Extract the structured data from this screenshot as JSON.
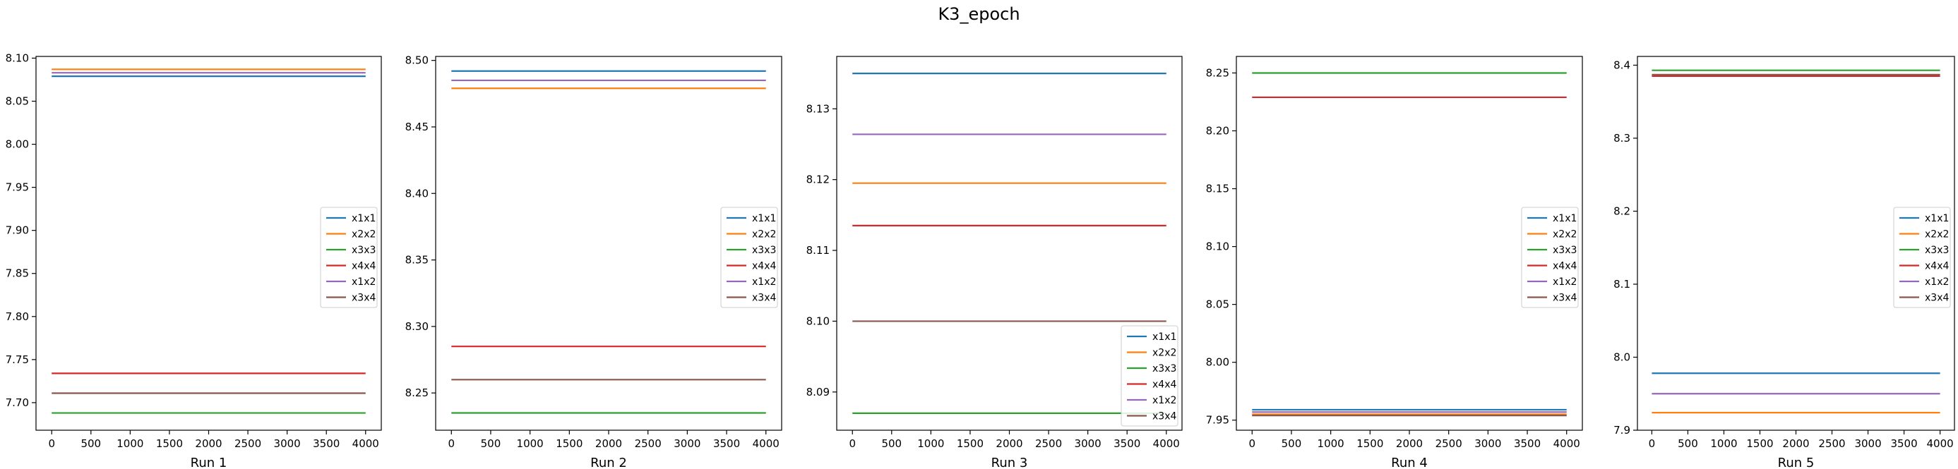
{
  "suptitle": "K3_epoch",
  "chart_data": [
    {
      "type": "line",
      "xlabel": "Run 1",
      "x": [
        0,
        4000
      ],
      "xticks": [
        0,
        500,
        1000,
        1500,
        2000,
        2500,
        3000,
        3500,
        4000
      ],
      "ylim": [
        7.668,
        8.102
      ],
      "yticks": [
        "7.70",
        "7.75",
        "7.80",
        "7.85",
        "7.90",
        "7.95",
        "8.00",
        "8.05",
        "8.10"
      ],
      "legend": "center-right",
      "series": [
        {
          "name": "x1x1",
          "color": "#1f77b4",
          "value": 8.079
        },
        {
          "name": "x2x2",
          "color": "#ff7f0e",
          "value": 8.087
        },
        {
          "name": "x3x3",
          "color": "#2ca02c",
          "value": 7.688
        },
        {
          "name": "x4x4",
          "color": "#d62728",
          "value": 7.734
        },
        {
          "name": "x1x2",
          "color": "#9467bd",
          "value": 8.083
        },
        {
          "name": "x3x4",
          "color": "#8c564b",
          "value": 7.711
        }
      ]
    },
    {
      "type": "line",
      "xlabel": "Run 2",
      "x": [
        0,
        4000
      ],
      "xticks": [
        0,
        500,
        1000,
        1500,
        2000,
        2500,
        3000,
        3500,
        4000
      ],
      "ylim": [
        8.222,
        8.503
      ],
      "yticks": [
        "8.25",
        "8.30",
        "8.35",
        "8.40",
        "8.45",
        "8.50"
      ],
      "legend": "center-right",
      "series": [
        {
          "name": "x1x1",
          "color": "#1f77b4",
          "value": 8.492
        },
        {
          "name": "x2x2",
          "color": "#ff7f0e",
          "value": 8.479
        },
        {
          "name": "x3x3",
          "color": "#2ca02c",
          "value": 8.235
        },
        {
          "name": "x4x4",
          "color": "#d62728",
          "value": 8.285
        },
        {
          "name": "x1x2",
          "color": "#9467bd",
          "value": 8.485
        },
        {
          "name": "x3x4",
          "color": "#8c564b",
          "value": 8.26
        }
      ]
    },
    {
      "type": "line",
      "xlabel": "Run 3",
      "x": [
        0,
        4000
      ],
      "xticks": [
        0,
        500,
        1000,
        1500,
        2000,
        2500,
        3000,
        3500,
        4000
      ],
      "ylim": [
        8.0846,
        8.1374
      ],
      "yticks": [
        "8.090",
        "8.100",
        "8.110",
        "8.120",
        "8.130"
      ],
      "ytick_values": [
        8.09,
        8.1,
        8.11,
        8.12,
        8.13
      ],
      "ytick_labels": [
        "8.09",
        "8.10",
        "8.11",
        "8.12",
        "8.13"
      ],
      "legend": "bottom-right",
      "series": [
        {
          "name": "x1x1",
          "color": "#1f77b4",
          "value": 8.135
        },
        {
          "name": "x2x2",
          "color": "#ff7f0e",
          "value": 8.1195
        },
        {
          "name": "x3x3",
          "color": "#2ca02c",
          "value": 8.087
        },
        {
          "name": "x4x4",
          "color": "#d62728",
          "value": 8.1135
        },
        {
          "name": "x1x2",
          "color": "#9467bd",
          "value": 8.1264
        },
        {
          "name": "x3x4",
          "color": "#8c564b",
          "value": 8.1
        }
      ]
    },
    {
      "type": "line",
      "xlabel": "Run 4",
      "x": [
        0,
        4000
      ],
      "xticks": [
        0,
        500,
        1000,
        1500,
        2000,
        2500,
        3000,
        3500,
        4000
      ],
      "ylim": [
        7.9413,
        8.2643
      ],
      "yticks": [
        "7.95",
        "8.00",
        "8.05",
        "8.10",
        "8.15",
        "8.20",
        "8.25"
      ],
      "legend": "center-right",
      "series": [
        {
          "name": "x1x1",
          "color": "#1f77b4",
          "value": 7.959
        },
        {
          "name": "x2x2",
          "color": "#ff7f0e",
          "value": 7.955
        },
        {
          "name": "x3x3",
          "color": "#2ca02c",
          "value": 8.25
        },
        {
          "name": "x4x4",
          "color": "#d62728",
          "value": 8.229
        },
        {
          "name": "x1x2",
          "color": "#9467bd",
          "value": 7.957
        },
        {
          "name": "x3x4",
          "color": "#8c564b",
          "value": 7.954
        }
      ]
    },
    {
      "type": "line",
      "xlabel": "Run 5",
      "x": [
        0,
        4000
      ],
      "xticks": [
        0,
        500,
        1000,
        1500,
        2000,
        2500,
        3000,
        3500,
        4000
      ],
      "ylim": [
        7.9,
        8.412
      ],
      "yticks": [
        "7.9",
        "8.0",
        "8.1",
        "8.2",
        "8.3",
        "8.4"
      ],
      "legend": "center-right",
      "series": [
        {
          "name": "x1x1",
          "color": "#1f77b4",
          "value": 7.978
        },
        {
          "name": "x2x2",
          "color": "#ff7f0e",
          "value": 7.924
        },
        {
          "name": "x3x3",
          "color": "#2ca02c",
          "value": 8.393
        },
        {
          "name": "x4x4",
          "color": "#d62728",
          "value": 8.385
        },
        {
          "name": "x1x2",
          "color": "#9467bd",
          "value": 7.95
        },
        {
          "name": "x3x4",
          "color": "#8c564b",
          "value": 8.387
        }
      ]
    }
  ]
}
